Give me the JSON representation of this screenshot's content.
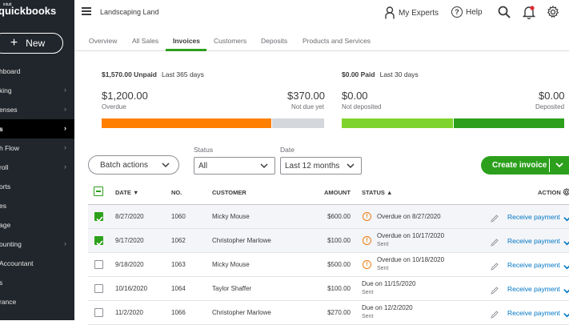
{
  "brand": {
    "small": "intuit",
    "name": "quickbooks"
  },
  "sidebar": {
    "new_label": "New",
    "items": [
      {
        "label": "hboard",
        "chevron": false
      },
      {
        "label": "king",
        "chevron": true
      },
      {
        "label": "enses",
        "chevron": true
      },
      {
        "label": "s",
        "chevron": true,
        "active": true
      },
      {
        "label": "h Flow",
        "chevron": true
      },
      {
        "label": "roll",
        "chevron": true
      },
      {
        "label": "orts",
        "chevron": false
      },
      {
        "label": "es",
        "chevron": false
      },
      {
        "label": "age",
        "chevron": false
      },
      {
        "label": "ounting",
        "chevron": true
      },
      {
        "label": "Accountant",
        "chevron": false
      },
      {
        "label": "s",
        "chevron": false
      },
      {
        "label": "rance",
        "chevron": false
      }
    ]
  },
  "topbar": {
    "company": "Landscaping Land",
    "my_experts": "My Experts",
    "help": "Help"
  },
  "tabs": [
    "Overview",
    "All Sales",
    "Invoices",
    "Customers",
    "Deposits",
    "Products and Services"
  ],
  "summary": {
    "unpaid": {
      "amount": "$1,570.00 Unpaid",
      "period": "Last 365 days",
      "overdue_amount": "$1,200.00",
      "overdue_label": "Overdue",
      "notdue_amount": "$370.00",
      "notdue_label": "Not due yet",
      "overdue_fraction": 0.764,
      "overdue_color": "#ff8000",
      "notdue_color": "#d4d7dc"
    },
    "paid": {
      "amount": "$0.00 Paid",
      "period": "Last 30 days",
      "notdeposited_amount": "$0.00",
      "notdeposited_label": "Not deposited",
      "deposited_amount": "$0.00",
      "deposited_label": "Deposited",
      "notdeposited_color": "#7fd32d",
      "deposited_color": "#2ca01c"
    }
  },
  "filters": {
    "batch_label": "Batch actions",
    "status_label": "Status",
    "status_value": "All",
    "date_label": "Date",
    "date_value": "Last 12 months",
    "create_label": "Create invoice"
  },
  "table": {
    "headers": {
      "date": "DATE ▼",
      "no": "NO.",
      "customer": "CUSTOMER",
      "amount": "AMOUNT",
      "status": "STATUS ▲",
      "action": "ACTION"
    },
    "rows": [
      {
        "checked": true,
        "date": "8/27/2020",
        "no": "1060",
        "customer": "Micky Mouse",
        "amount": "$600.00",
        "status": "Overdue on 8/27/2020",
        "sub": "",
        "warn": true,
        "action": "Receive payment"
      },
      {
        "checked": true,
        "date": "9/17/2020",
        "no": "1062",
        "customer": "Christopher Marlowe",
        "amount": "$100.00",
        "status": "Overdue on 10/17/2020",
        "sub": "Sent",
        "warn": true,
        "action": "Receive payment"
      },
      {
        "checked": false,
        "date": "9/18/2020",
        "no": "1063",
        "customer": "Micky Mouse",
        "amount": "$500.00",
        "status": "Overdue on 10/18/2020",
        "sub": "Sent",
        "warn": true,
        "action": "Receive payment"
      },
      {
        "checked": false,
        "date": "10/16/2020",
        "no": "1064",
        "customer": "Taylor Shaffer",
        "amount": "$100.00",
        "status": "Due on 11/15/2020",
        "sub": "Sent",
        "warn": false,
        "action": "Receive payment"
      },
      {
        "checked": false,
        "date": "11/2/2020",
        "no": "1066",
        "customer": "Christopher Marlowe",
        "amount": "$270.00",
        "status": "Due on 12/2/2020",
        "sub": "Sent",
        "warn": false,
        "action": "Receive payment"
      }
    ]
  }
}
